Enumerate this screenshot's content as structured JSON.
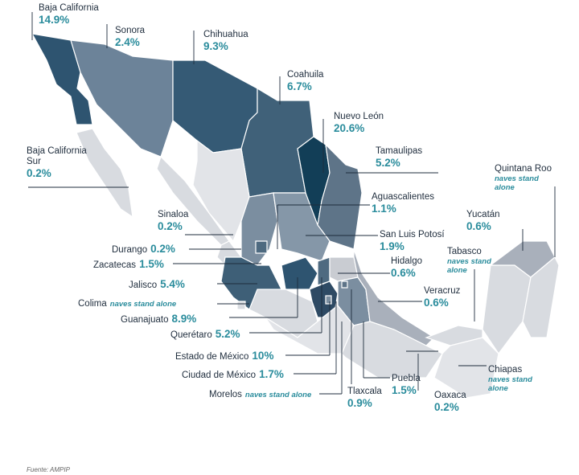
{
  "regions": [
    {
      "name": "Baja California",
      "value": "14.9%"
    },
    {
      "name": "Sonora",
      "value": "2.4%"
    },
    {
      "name": "Chihuahua",
      "value": "9.3%"
    },
    {
      "name": "Coahuila",
      "value": "6.7%"
    },
    {
      "name": "Nuevo León",
      "value": "20.6%"
    },
    {
      "name": "Tamaulipas",
      "value": "5.2%"
    },
    {
      "name": "Baja California Sur",
      "value": "0.2%"
    },
    {
      "name": "Quintana Roo",
      "note": "naves stand alone"
    },
    {
      "name": "Aguascalientes",
      "value": "1.1%"
    },
    {
      "name": "Yucatán",
      "value": "0.6%"
    },
    {
      "name": "Sinaloa",
      "value": "0.2%"
    },
    {
      "name": "San Luis Potosí",
      "value": "1.9%"
    },
    {
      "name": "Durango",
      "value": "0.2%"
    },
    {
      "name": "Tabasco",
      "note": "naves stand alone"
    },
    {
      "name": "Zacatecas",
      "value": "1.5%"
    },
    {
      "name": "Hidalgo",
      "value": "0.6%"
    },
    {
      "name": "Jalisco",
      "value": "5.4%"
    },
    {
      "name": "Veracruz",
      "value": "0.6%"
    },
    {
      "name": "Colima",
      "note": "naves stand alone"
    },
    {
      "name": "Guanajuato",
      "value": "8.9%"
    },
    {
      "name": "Querétaro",
      "value": "5.2%"
    },
    {
      "name": "Estado de México",
      "value": "10%"
    },
    {
      "name": "Chiapas",
      "note": "naves stand alone"
    },
    {
      "name": "Ciudad de México",
      "value": "1.7%"
    },
    {
      "name": "Puebla",
      "value": "1.5%"
    },
    {
      "name": "Morelos",
      "note": "naves stand alone"
    },
    {
      "name": "Tlaxcala",
      "value": "0.9%"
    },
    {
      "name": "Oaxaca",
      "value": "0.2%"
    }
  ],
  "source": "Fuente: AMPIP"
}
